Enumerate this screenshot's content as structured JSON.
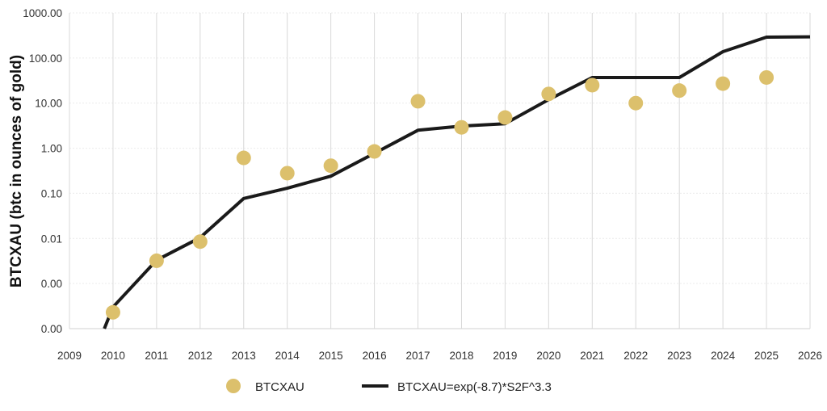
{
  "chart_data": {
    "type": "scatter",
    "title": "",
    "xlabel": "",
    "ylabel": "BTCXAU (btc in ounces of gold)",
    "xlim": [
      2009,
      2026
    ],
    "ylim": [
      0.0001,
      1000
    ],
    "yscale": "log",
    "grid": true,
    "legend_position": "bottom",
    "x_ticks": [
      "2009",
      "2010",
      "2011",
      "2012",
      "2013",
      "2014",
      "2015",
      "2016",
      "2017",
      "2018",
      "2019",
      "2020",
      "2021",
      "2022",
      "2023",
      "2024",
      "2025",
      "2026"
    ],
    "y_ticks": [
      {
        "value": 0.0001,
        "label": "0.00"
      },
      {
        "value": 0.001,
        "label": "0.00"
      },
      {
        "value": 0.01,
        "label": "0.01"
      },
      {
        "value": 0.1,
        "label": "0.10"
      },
      {
        "value": 1,
        "label": "1.00"
      },
      {
        "value": 10,
        "label": "10.00"
      },
      {
        "value": 100,
        "label": "100.00"
      },
      {
        "value": 1000,
        "label": "1000.00"
      }
    ],
    "series": [
      {
        "name": "BTCXAU",
        "kind": "scatter",
        "color": "#dcc06c",
        "x": [
          2010,
          2011,
          2012,
          2013,
          2014,
          2015,
          2016,
          2017,
          2018,
          2019,
          2020,
          2021,
          2022,
          2023,
          2024,
          2025
        ],
        "y": [
          0.00023,
          0.0032,
          0.0085,
          0.61,
          0.28,
          0.41,
          0.85,
          11,
          2.9,
          4.8,
          16,
          25,
          10,
          19,
          27,
          37
        ]
      },
      {
        "name": "BTCXAU=exp(-8.7)*S2F^3.3",
        "kind": "line",
        "color": "#1a1a1a",
        "x": [
          2009.8,
          2010,
          2011,
          2012,
          2013,
          2014,
          2015,
          2016,
          2017,
          2018,
          2019,
          2020,
          2021,
          2022,
          2023,
          2024,
          2025,
          2026
        ],
        "y": [
          0.0001,
          0.0003,
          0.0033,
          0.0104,
          0.077,
          0.13,
          0.24,
          0.77,
          2.5,
          3.1,
          3.5,
          12,
          37,
          37,
          37,
          138,
          290,
          295
        ]
      }
    ]
  }
}
